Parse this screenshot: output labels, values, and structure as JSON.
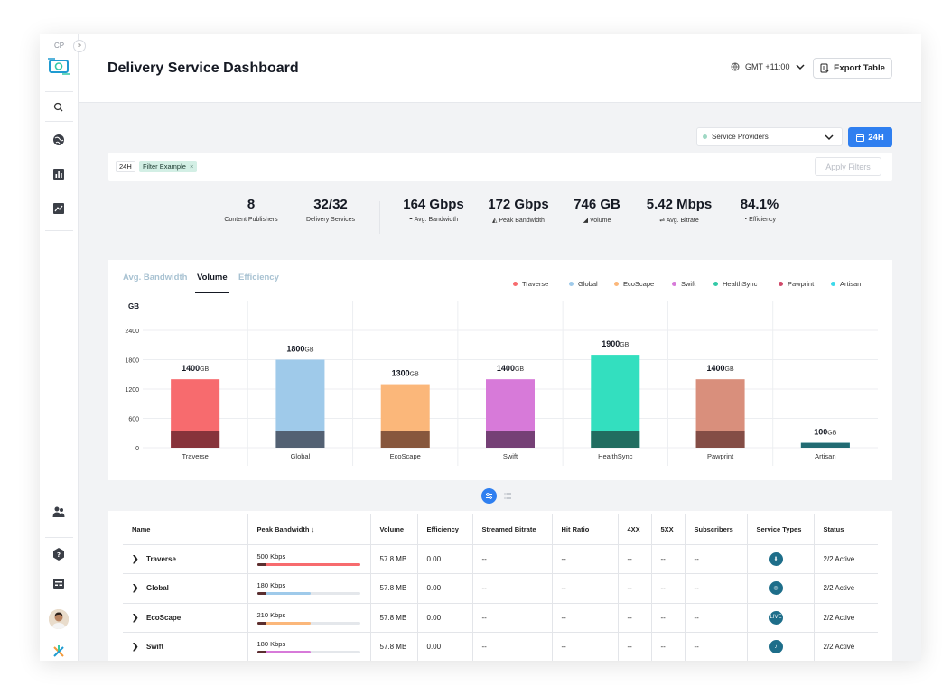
{
  "sidebar": {
    "brand_short": "CP",
    "expand_glyph": "»",
    "icons": [
      "logo-icon",
      "search-icon",
      "globe-icon",
      "bar-chart-icon",
      "line-chart-icon",
      "users-icon",
      "help-icon",
      "dashboard-icon",
      "avatar",
      "brand-mark-icon"
    ]
  },
  "header": {
    "title": "Delivery Service Dashboard",
    "timezone": "GMT +11:00",
    "export_label": "Export Table"
  },
  "filters": {
    "provider_select": "Service Providers",
    "range_button": "24H",
    "chip_range": "24H",
    "chip_filter": "Filter Example",
    "chip_remove": "×",
    "apply_label": "Apply Filters"
  },
  "stats": [
    {
      "value": "8",
      "label": "Content Publishers"
    },
    {
      "value": "32/32",
      "label": "Delivery Services"
    },
    {
      "value": "164 Gbps",
      "label": "Avg. Bandwidth"
    },
    {
      "value": "172 Gbps",
      "label": "Peak Bandwidth"
    },
    {
      "value": "746 GB",
      "label": "Volume"
    },
    {
      "value": "5.42 Mbps",
      "label": "Avg. Bitrate"
    },
    {
      "value": "84.1%",
      "label": "Efficiency"
    }
  ],
  "chart_tabs": [
    "Avg. Bandwidth",
    "Volume",
    "Efficiency"
  ],
  "active_tab": "Volume",
  "chart_data": {
    "type": "bar",
    "ylabel": "GB",
    "ylim": [
      0,
      2400
    ],
    "yticks": [
      0,
      600,
      1200,
      1800,
      2400
    ],
    "categories": [
      "Traverse",
      "Global",
      "EcoScape",
      "Swift",
      "HealthSync",
      "Pawprint",
      "Artisan"
    ],
    "values": [
      1400,
      1800,
      1300,
      1400,
      1900,
      1400,
      100
    ],
    "value_labels": [
      "1400",
      "1800",
      "1300",
      "1400",
      "1900",
      "1400",
      "100"
    ],
    "unit": "GB",
    "colors": [
      "#f76b6e",
      "#9fcaea",
      "#fbb77a",
      "#d77ad9",
      "#33dfbf",
      "#d98f7c",
      "#3cd9ea"
    ],
    "base_colors": [
      "#7a2e35",
      "#4a5566",
      "#7a4c36",
      "#6a3a6a",
      "#1f6055",
      "#7a4640",
      "#1f5e66"
    ],
    "legend": [
      {
        "name": "Traverse",
        "color": "#f76b6e"
      },
      {
        "name": "Global",
        "color": "#9fcaea"
      },
      {
        "name": "EcoScape",
        "color": "#fbb77a"
      },
      {
        "name": "Swift",
        "color": "#d77ad9"
      },
      {
        "name": "HealthSync",
        "color": "#33c9a7"
      },
      {
        "name": "Pawprint",
        "color": "#d04a6a"
      },
      {
        "name": "Artisan",
        "color": "#3cd9ea"
      }
    ],
    "grid": true,
    "legend_position": "top-right"
  },
  "table": {
    "columns": [
      "Name",
      "Peak Bandwidth",
      "Volume",
      "Efficiency",
      "Streamed Bitrate",
      "Hit Ratio",
      "4XX",
      "5XX",
      "Subscribers",
      "Service Types",
      "Status"
    ],
    "sort_glyph": "↓",
    "rows": [
      {
        "name": "Traverse",
        "peak": "500 Kbps",
        "peak_fraction": 1.0,
        "color": "#f76b6e",
        "volume": "57.8 MB",
        "efficiency": "0.00",
        "bitrate": "--",
        "hit": "--",
        "x4": "--",
        "x5": "--",
        "subs": "--",
        "service_icon": "download-icon",
        "service_glyph": "⬇",
        "status": "2/2 Active"
      },
      {
        "name": "Global",
        "peak": "180 Kbps",
        "peak_fraction": 0.52,
        "color": "#9fcaea",
        "volume": "57.8 MB",
        "efficiency": "0.00",
        "bitrate": "--",
        "hit": "--",
        "x4": "--",
        "x5": "--",
        "subs": "--",
        "service_icon": "globe-icon",
        "service_glyph": "◎",
        "status": "2/2 Active"
      },
      {
        "name": "EcoScape",
        "peak": "210 Kbps",
        "peak_fraction": 0.52,
        "color": "#fbb77a",
        "volume": "57.8 MB",
        "efficiency": "0.00",
        "bitrate": "--",
        "hit": "--",
        "x4": "--",
        "x5": "--",
        "subs": "--",
        "service_icon": "live-icon",
        "service_glyph": "LIVE",
        "status": "2/2 Active"
      },
      {
        "name": "Swift",
        "peak": "180 Kbps",
        "peak_fraction": 0.52,
        "color": "#d77ad9",
        "volume": "57.8 MB",
        "efficiency": "0.00",
        "bitrate": "--",
        "hit": "--",
        "x4": "--",
        "x5": "--",
        "subs": "--",
        "service_icon": "music-icon",
        "service_glyph": "♪",
        "status": "2/2 Active"
      }
    ]
  }
}
